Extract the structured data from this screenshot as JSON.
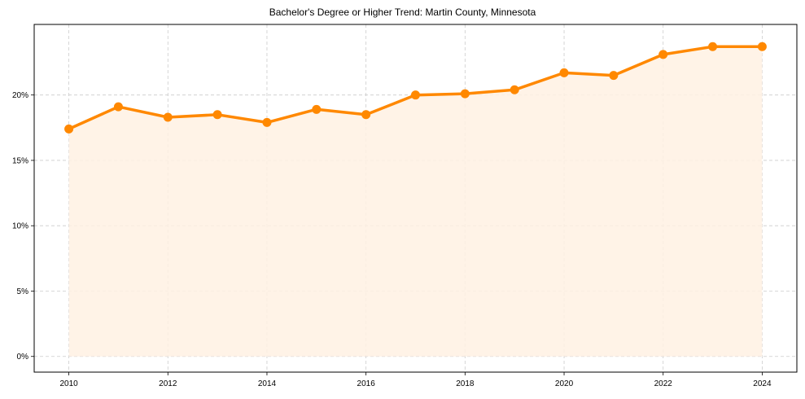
{
  "chart_data": {
    "type": "line",
    "title": "Bachelor's Degree or Higher Trend: Martin County, Minnesota",
    "xlabel": "",
    "ylabel": "",
    "x": [
      2010,
      2011,
      2012,
      2013,
      2014,
      2015,
      2016,
      2017,
      2018,
      2019,
      2020,
      2021,
      2022,
      2023,
      2024
    ],
    "series": [
      {
        "name": "Bachelor's Degree or Higher",
        "values": [
          17.4,
          19.1,
          18.3,
          18.5,
          17.9,
          18.9,
          18.5,
          20.0,
          20.1,
          20.4,
          21.7,
          21.5,
          23.1,
          23.7,
          23.7
        ],
        "color": "#ff8800",
        "fill": "#fff1e3",
        "marker": "circle"
      }
    ],
    "xticks": [
      "2010",
      "2012",
      "2014",
      "2016",
      "2018",
      "2020",
      "2022",
      "2024"
    ],
    "yticks": [
      "0%",
      "5%",
      "10%",
      "15%",
      "20%"
    ],
    "ylim": [
      -1.2,
      25.4
    ],
    "xlim": [
      2009.3,
      2024.7
    ],
    "grid": true,
    "legend": "none"
  }
}
